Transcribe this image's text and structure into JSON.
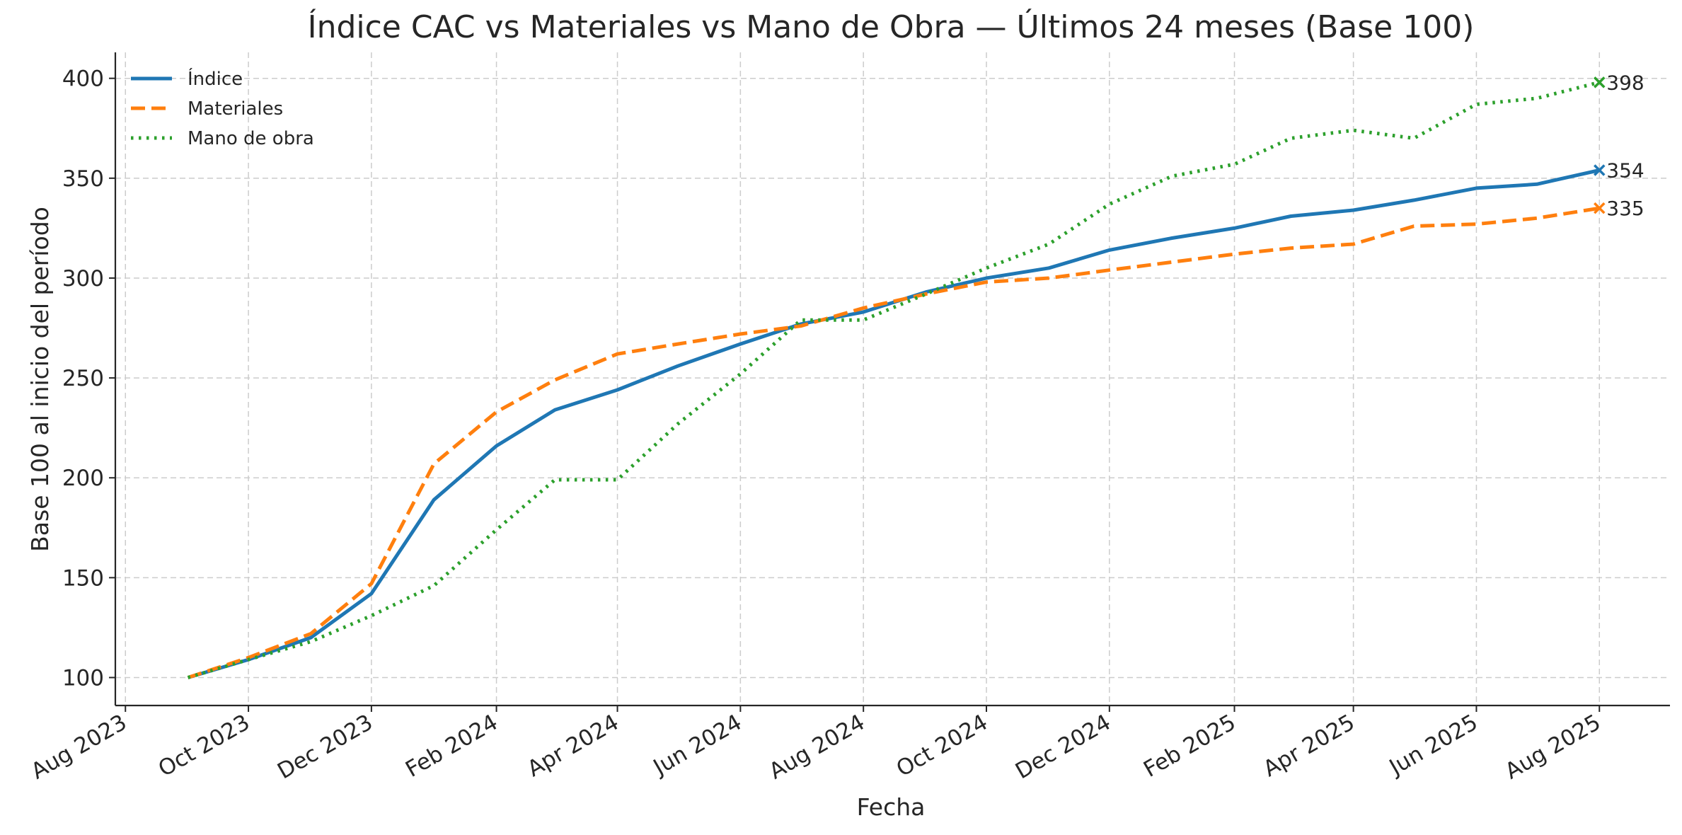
{
  "chart_data": {
    "type": "line",
    "title": "Índice CAC vs Materiales vs Mano de Obra — Últimos 24 meses (Base 100)",
    "xlabel": "Fecha",
    "ylabel": "Base 100 al inicio del período",
    "ylim": [
      86,
      413
    ],
    "xlim": [
      "2023-07-27",
      "2025-09-05"
    ],
    "grid": true,
    "legend_position": "top-left",
    "x": [
      "2023-09-01",
      "2023-10-01",
      "2023-11-01",
      "2023-12-01",
      "2024-01-01",
      "2024-02-01",
      "2024-03-01",
      "2024-04-01",
      "2024-05-01",
      "2024-06-01",
      "2024-07-01",
      "2024-08-01",
      "2024-09-01",
      "2024-10-01",
      "2024-11-01",
      "2024-12-01",
      "2025-01-01",
      "2025-02-01",
      "2025-03-01",
      "2025-04-01",
      "2025-05-01",
      "2025-06-01",
      "2025-07-01",
      "2025-08-01"
    ],
    "x_ticks": [
      {
        "date": "2023-08-01",
        "label": "Aug 2023"
      },
      {
        "date": "2023-10-01",
        "label": "Oct 2023"
      },
      {
        "date": "2023-12-01",
        "label": "Dec 2023"
      },
      {
        "date": "2024-02-01",
        "label": "Feb 2024"
      },
      {
        "date": "2024-04-01",
        "label": "Apr 2024"
      },
      {
        "date": "2024-06-01",
        "label": "Jun 2024"
      },
      {
        "date": "2024-08-01",
        "label": "Aug 2024"
      },
      {
        "date": "2024-10-01",
        "label": "Oct 2024"
      },
      {
        "date": "2024-12-01",
        "label": "Dec 2024"
      },
      {
        "date": "2025-02-01",
        "label": "Feb 2025"
      },
      {
        "date": "2025-04-01",
        "label": "Apr 2025"
      },
      {
        "date": "2025-06-01",
        "label": "Jun 2025"
      },
      {
        "date": "2025-08-01",
        "label": "Aug 2025"
      }
    ],
    "y_ticks": [
      100,
      150,
      200,
      250,
      300,
      350,
      400
    ],
    "series": [
      {
        "name": "Índice",
        "color": "#1f77b4",
        "style": "solid",
        "values": [
          100,
          109,
          120,
          142,
          189,
          216,
          234,
          244,
          256,
          267,
          277,
          283,
          293,
          300,
          305,
          314,
          320,
          325,
          331,
          334,
          339,
          345,
          347,
          354
        ],
        "end_label": "354"
      },
      {
        "name": "Materiales",
        "color": "#ff7f0e",
        "style": "dashed",
        "values": [
          100,
          110,
          122,
          147,
          207,
          233,
          249,
          262,
          267,
          272,
          276,
          285,
          292,
          298,
          300,
          304,
          308,
          312,
          315,
          317,
          326,
          327,
          330,
          335
        ],
        "end_label": "335"
      },
      {
        "name": "Mano de obra",
        "color": "#2ca02c",
        "style": "dotted",
        "values": [
          100,
          109,
          118,
          131,
          146,
          174,
          199,
          199,
          227,
          252,
          279,
          279,
          292,
          305,
          317,
          337,
          351,
          357,
          370,
          374,
          370,
          387,
          390,
          398
        ],
        "end_label": "398"
      }
    ]
  }
}
